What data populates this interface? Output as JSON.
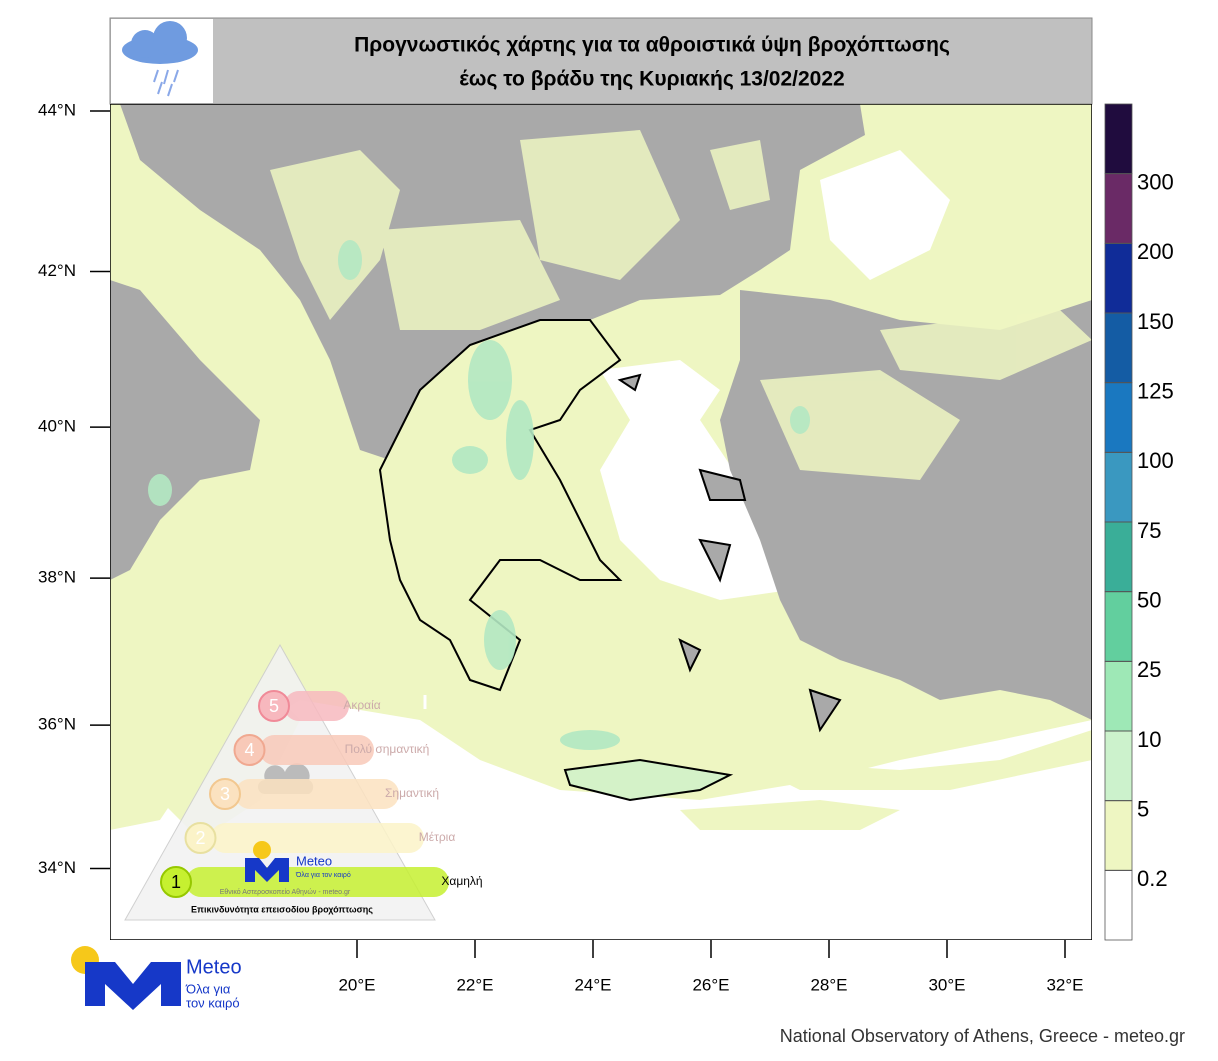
{
  "header": {
    "title_lines": [
      "Προγνωστικός χάρτης για τα αθροιστικά ύψη βροχόπτωσης",
      "έως το βράδυ της Κυριακής 13/02/2022"
    ]
  },
  "map": {
    "lat_ticks": [
      {
        "value": 44,
        "label": "44°N"
      },
      {
        "value": 42,
        "label": "42°N"
      },
      {
        "value": 40,
        "label": "40°N"
      },
      {
        "value": 38,
        "label": "38°N"
      },
      {
        "value": 36,
        "label": "36°N"
      },
      {
        "value": 34,
        "label": "34°N"
      }
    ],
    "lon_ticks": [
      {
        "value": 20,
        "label": "20°E"
      },
      {
        "value": 22,
        "label": "22°E"
      },
      {
        "value": 24,
        "label": "24°E"
      },
      {
        "value": 26,
        "label": "26°E"
      },
      {
        "value": 28,
        "label": "28°E"
      },
      {
        "value": 30,
        "label": "30°E"
      },
      {
        "value": 32,
        "label": "32°E"
      }
    ]
  },
  "colorbar": {
    "ticks": [
      0.2,
      5,
      10,
      25,
      50,
      75,
      100,
      125,
      150,
      200,
      300
    ],
    "colors": [
      "#ffffff",
      "#eef6c2",
      "#ccf2cc",
      "#9ee8b6",
      "#62cf9e",
      "#3aae98",
      "#3a98c0",
      "#1a78c0",
      "#145ca4",
      "#102c98",
      "#6a2a66",
      "#200c3e"
    ]
  },
  "risk_scale": {
    "levels": [
      {
        "number": 5,
        "label": "Ακραία"
      },
      {
        "number": 4,
        "label": "Πολύ σημαντική"
      },
      {
        "number": 3,
        "label": "Σημαντική"
      },
      {
        "number": 2,
        "label": "Μέτρια"
      },
      {
        "number": 1,
        "label": "Χαμηλή"
      }
    ],
    "caption": "Επικινδυνότητα επεισοδίου βροχόπτωσης",
    "logo_name": "Meteo",
    "logo_slogan": "Όλα για τον καιρό",
    "logo_org": "Εθνικό Αστεροσκοπείο Αθηνών - meteo.gr"
  },
  "logo": {
    "name": "Meteo",
    "slogan_lines": [
      "Όλα για",
      "τον καιρό"
    ]
  },
  "footer": "National Observatory of Athens, Greece - meteo.gr"
}
